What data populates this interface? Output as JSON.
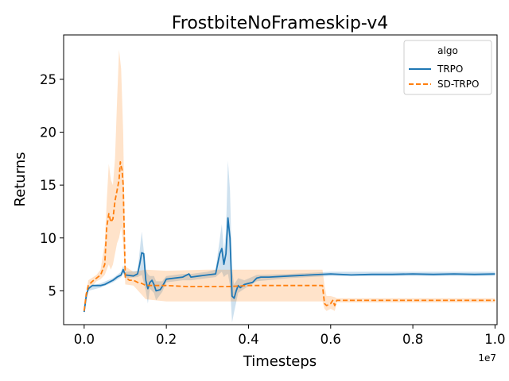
{
  "chart_data": {
    "type": "line",
    "title": "FrostbiteNoFrameskip-v4",
    "xlabel": "Timesteps",
    "ylabel": "Returns",
    "x_offset_label": "1e7",
    "xlim": [
      -0.05,
      1.005
    ],
    "ylim": [
      1.8,
      29.2
    ],
    "xticks": [
      0.0,
      0.2,
      0.4,
      0.6,
      0.8,
      1.0
    ],
    "xtick_labels": [
      "0.0",
      "0.2",
      "0.4",
      "0.6",
      "0.8",
      "1.0"
    ],
    "yticks": [
      5,
      10,
      15,
      20,
      25
    ],
    "ytick_labels": [
      "5",
      "10",
      "15",
      "20",
      "25"
    ],
    "grid": false,
    "legend": {
      "title": "algo",
      "placement": "top-right"
    },
    "series": [
      {
        "name": "TRPO",
        "color": "#1f77b4",
        "dash": "solid",
        "points": [
          [
            0.0,
            3.0
          ],
          [
            0.005,
            4.5
          ],
          [
            0.01,
            5.2
          ],
          [
            0.02,
            5.5
          ],
          [
            0.04,
            5.5
          ],
          [
            0.05,
            5.6
          ],
          [
            0.06,
            5.8
          ],
          [
            0.07,
            6.0
          ],
          [
            0.08,
            6.3
          ],
          [
            0.09,
            6.5
          ],
          [
            0.095,
            7.0
          ],
          [
            0.1,
            6.5
          ],
          [
            0.12,
            6.4
          ],
          [
            0.13,
            6.6
          ],
          [
            0.135,
            7.5
          ],
          [
            0.14,
            8.6
          ],
          [
            0.145,
            8.5
          ],
          [
            0.15,
            6.0
          ],
          [
            0.155,
            5.2
          ],
          [
            0.16,
            5.8
          ],
          [
            0.165,
            6.0
          ],
          [
            0.17,
            5.6
          ],
          [
            0.175,
            5.0
          ],
          [
            0.185,
            5.1
          ],
          [
            0.19,
            5.4
          ],
          [
            0.2,
            6.1
          ],
          [
            0.22,
            6.2
          ],
          [
            0.24,
            6.3
          ],
          [
            0.255,
            6.6
          ],
          [
            0.26,
            6.3
          ],
          [
            0.28,
            6.4
          ],
          [
            0.3,
            6.5
          ],
          [
            0.32,
            6.6
          ],
          [
            0.33,
            8.5
          ],
          [
            0.335,
            9.0
          ],
          [
            0.34,
            7.5
          ],
          [
            0.345,
            8.5
          ],
          [
            0.35,
            11.9
          ],
          [
            0.355,
            10.0
          ],
          [
            0.36,
            4.5
          ],
          [
            0.365,
            4.3
          ],
          [
            0.37,
            5.0
          ],
          [
            0.375,
            5.5
          ],
          [
            0.38,
            5.3
          ],
          [
            0.39,
            5.6
          ],
          [
            0.4,
            5.7
          ],
          [
            0.41,
            5.8
          ],
          [
            0.42,
            6.2
          ],
          [
            0.43,
            6.3
          ],
          [
            0.45,
            6.3
          ],
          [
            0.5,
            6.4
          ],
          [
            0.55,
            6.5
          ],
          [
            0.6,
            6.6
          ],
          [
            0.65,
            6.5
          ],
          [
            0.7,
            6.55
          ],
          [
            0.75,
            6.55
          ],
          [
            0.8,
            6.6
          ],
          [
            0.85,
            6.55
          ],
          [
            0.9,
            6.6
          ],
          [
            0.95,
            6.55
          ],
          [
            1.0,
            6.6
          ]
        ],
        "band": [
          [
            0.0,
            2.8,
            3.2
          ],
          [
            0.01,
            5.0,
            5.4
          ],
          [
            0.04,
            5.3,
            5.7
          ],
          [
            0.07,
            5.8,
            6.2
          ],
          [
            0.09,
            6.3,
            6.8
          ],
          [
            0.095,
            6.7,
            7.4
          ],
          [
            0.1,
            6.2,
            6.8
          ],
          [
            0.13,
            6.3,
            6.9
          ],
          [
            0.14,
            6.5,
            10.6
          ],
          [
            0.15,
            5.0,
            7.0
          ],
          [
            0.155,
            3.8,
            6.6
          ],
          [
            0.16,
            5.2,
            6.4
          ],
          [
            0.17,
            4.8,
            6.4
          ],
          [
            0.175,
            4.1,
            5.9
          ],
          [
            0.19,
            4.9,
            5.9
          ],
          [
            0.2,
            5.8,
            6.4
          ],
          [
            0.24,
            6.0,
            6.6
          ],
          [
            0.26,
            6.0,
            6.6
          ],
          [
            0.3,
            6.2,
            6.8
          ],
          [
            0.32,
            6.3,
            7.0
          ],
          [
            0.335,
            6.8,
            11.3
          ],
          [
            0.34,
            6.3,
            8.7
          ],
          [
            0.345,
            6.5,
            10.5
          ],
          [
            0.35,
            6.6,
            17.3
          ],
          [
            0.355,
            5.5,
            14.5
          ],
          [
            0.36,
            2.0,
            7.0
          ],
          [
            0.365,
            3.0,
            5.6
          ],
          [
            0.375,
            4.8,
            6.2
          ],
          [
            0.39,
            5.2,
            6.0
          ],
          [
            0.42,
            5.9,
            6.5
          ],
          [
            0.5,
            6.2,
            6.6
          ],
          [
            0.6,
            6.4,
            6.8
          ],
          [
            0.8,
            6.4,
            6.8
          ],
          [
            1.0,
            6.4,
            6.8
          ]
        ]
      },
      {
        "name": "SD-TRPO",
        "color": "#ff7f0e",
        "dash": "dashed",
        "points": [
          [
            0.0,
            3.1
          ],
          [
            0.005,
            4.7
          ],
          [
            0.01,
            5.5
          ],
          [
            0.02,
            5.9
          ],
          [
            0.03,
            6.2
          ],
          [
            0.04,
            6.5
          ],
          [
            0.05,
            7.5
          ],
          [
            0.055,
            11.0
          ],
          [
            0.06,
            12.3
          ],
          [
            0.065,
            11.5
          ],
          [
            0.07,
            11.8
          ],
          [
            0.075,
            13.5
          ],
          [
            0.08,
            14.5
          ],
          [
            0.085,
            15.5
          ],
          [
            0.088,
            17.2
          ],
          [
            0.09,
            16.8
          ],
          [
            0.092,
            16.5
          ],
          [
            0.095,
            15.0
          ],
          [
            0.1,
            6.3
          ],
          [
            0.11,
            6.0
          ],
          [
            0.12,
            6.0
          ],
          [
            0.13,
            5.8
          ],
          [
            0.14,
            5.7
          ],
          [
            0.15,
            5.5
          ],
          [
            0.2,
            5.5
          ],
          [
            0.25,
            5.4
          ],
          [
            0.3,
            5.4
          ],
          [
            0.35,
            5.4
          ],
          [
            0.4,
            5.5
          ],
          [
            0.45,
            5.5
          ],
          [
            0.5,
            5.5
          ],
          [
            0.55,
            5.5
          ],
          [
            0.58,
            5.5
          ],
          [
            0.585,
            3.8
          ],
          [
            0.59,
            3.6
          ],
          [
            0.6,
            3.8
          ],
          [
            0.605,
            4.1
          ],
          [
            0.61,
            3.6
          ],
          [
            0.615,
            4.1
          ],
          [
            0.65,
            4.1
          ],
          [
            0.7,
            4.1
          ],
          [
            0.75,
            4.1
          ],
          [
            0.8,
            4.1
          ],
          [
            0.85,
            4.1
          ],
          [
            0.9,
            4.1
          ],
          [
            0.95,
            4.1
          ],
          [
            1.0,
            4.1
          ]
        ],
        "band": [
          [
            0.0,
            2.9,
            3.3
          ],
          [
            0.01,
            5.0,
            6.0
          ],
          [
            0.03,
            5.9,
            6.5
          ],
          [
            0.04,
            6.1,
            7.0
          ],
          [
            0.05,
            6.5,
            9.5
          ],
          [
            0.055,
            7.0,
            13.5
          ],
          [
            0.06,
            7.5,
            17.0
          ],
          [
            0.065,
            7.0,
            15.5
          ],
          [
            0.07,
            7.5,
            15.0
          ],
          [
            0.075,
            8.5,
            17.5
          ],
          [
            0.08,
            9.5,
            23.0
          ],
          [
            0.085,
            10.0,
            27.8
          ],
          [
            0.09,
            11.0,
            26.0
          ],
          [
            0.095,
            9.5,
            20.0
          ],
          [
            0.1,
            5.6,
            7.3
          ],
          [
            0.12,
            5.5,
            6.8
          ],
          [
            0.15,
            4.2,
            7.0
          ],
          [
            0.2,
            4.0,
            6.9
          ],
          [
            0.3,
            4.0,
            7.0
          ],
          [
            0.4,
            4.0,
            7.0
          ],
          [
            0.5,
            4.0,
            7.0
          ],
          [
            0.58,
            4.0,
            7.0
          ],
          [
            0.585,
            3.3,
            5.5
          ],
          [
            0.59,
            3.1,
            4.5
          ],
          [
            0.6,
            3.3,
            4.5
          ],
          [
            0.61,
            3.1,
            4.4
          ],
          [
            0.615,
            3.9,
            4.3
          ],
          [
            0.7,
            3.9,
            4.3
          ],
          [
            1.0,
            3.9,
            4.3
          ]
        ]
      }
    ]
  }
}
